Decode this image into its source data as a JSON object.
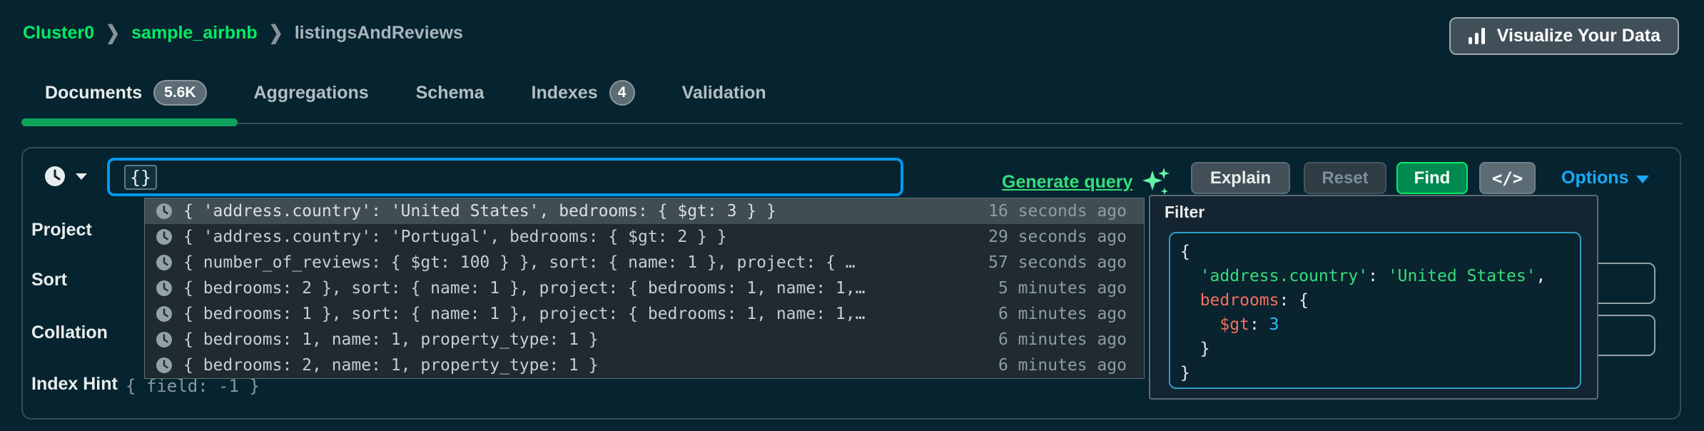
{
  "breadcrumb": {
    "cluster": "Cluster0",
    "database": "sample_airbnb",
    "collection": "listingsAndReviews"
  },
  "visualize_button": {
    "label": "Visualize Your Data"
  },
  "tabs": {
    "items": [
      {
        "label": "Documents",
        "badge": "5.6K",
        "active": true
      },
      {
        "label": "Aggregations",
        "active": false
      },
      {
        "label": "Schema",
        "active": false
      },
      {
        "label": "Indexes",
        "badge": "4",
        "active": false
      },
      {
        "label": "Validation",
        "active": false
      }
    ]
  },
  "query_bar": {
    "filter_input_value": "{}",
    "generate_query_label": "Generate query",
    "explain_label": "Explain",
    "reset_label": "Reset",
    "find_label": "Find",
    "code_toggle_label": "</>",
    "options_label": "Options"
  },
  "query_form": {
    "labels": {
      "project": "Project",
      "sort": "Sort",
      "collation": "Collation",
      "index_hint": "Index Hint"
    },
    "index_hint_placeholder": "{ field: -1 }"
  },
  "query_history": {
    "items": [
      {
        "query": "{ 'address.country': 'United States', bedrooms: { $gt: 3 } }",
        "time": "16 seconds ago",
        "highlighted": true
      },
      {
        "query": "{ 'address.country': 'Portugal', bedrooms: { $gt: 2 } }",
        "time": "29 seconds ago",
        "highlighted": false
      },
      {
        "query": "{ number_of_reviews: { $gt: 100 } }, sort: { name: 1 }, project: { …",
        "time": "57 seconds ago",
        "highlighted": false
      },
      {
        "query": "{ bedrooms: 2 }, sort: { name: 1 }, project: { bedrooms: 1, name: 1,…",
        "time": "5 minutes ago",
        "highlighted": false
      },
      {
        "query": "{ bedrooms: 1 }, sort: { name: 1 }, project: { bedrooms: 1, name: 1,…",
        "time": "6 minutes ago",
        "highlighted": false
      },
      {
        "query": "{ bedrooms: 1, name: 1, property_type: 1 }",
        "time": "6 minutes ago",
        "highlighted": false
      },
      {
        "query": "{ bedrooms: 2, name: 1, property_type: 1 }",
        "time": "6 minutes ago",
        "highlighted": false
      }
    ]
  },
  "filter_popover": {
    "title": "Filter",
    "code_lines": [
      [
        {
          "text": "{",
          "type": "plain"
        }
      ],
      [
        {
          "text": "  ",
          "type": "plain"
        },
        {
          "text": "'address.country'",
          "type": "string"
        },
        {
          "text": ": ",
          "type": "plain"
        },
        {
          "text": "'United States'",
          "type": "string"
        },
        {
          "text": ",",
          "type": "plain"
        }
      ],
      [
        {
          "text": "  ",
          "type": "plain"
        },
        {
          "text": "bedrooms",
          "type": "field"
        },
        {
          "text": ": {",
          "type": "plain"
        }
      ],
      [
        {
          "text": "    ",
          "type": "plain"
        },
        {
          "text": "$gt",
          "type": "field"
        },
        {
          "text": ": ",
          "type": "plain"
        },
        {
          "text": "3",
          "type": "number"
        }
      ],
      [
        {
          "text": "  }",
          "type": "plain"
        }
      ],
      [
        {
          "text": "}",
          "type": "plain"
        }
      ]
    ]
  },
  "colors": {
    "accent_green": "#00ED64",
    "link_green": "#35DE7B",
    "focus_blue": "#0498EC",
    "options_blue": "#1AA9F7",
    "syntax_string": "#35DE7B",
    "syntax_field": "#F4705B",
    "syntax_number": "#2DC4FF"
  }
}
